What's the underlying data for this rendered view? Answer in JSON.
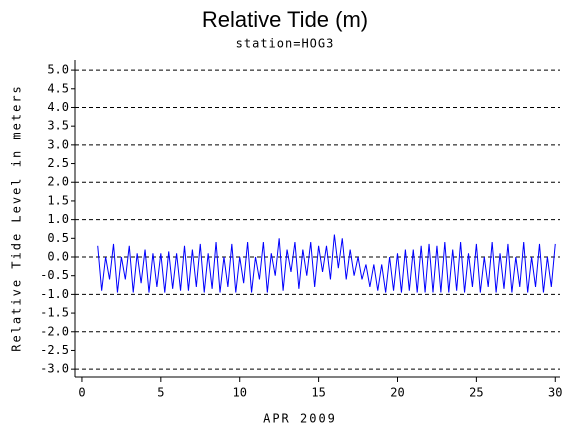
{
  "chart_data": {
    "type": "line",
    "title": "Relative Tide (m)",
    "subtitle": "station=HOG3",
    "xlabel": "APR 2009",
    "ylabel": "Relative Tide Level in meters",
    "xlim": [
      -0.44,
      30.3
    ],
    "ylim": [
      -3.21,
      5.27
    ],
    "xticks": [
      0,
      5,
      10,
      15,
      20,
      25,
      30
    ],
    "yticks": [
      {
        "value": 5,
        "label": "5.0"
      },
      4.5,
      {
        "value": 4,
        "label": "4.0"
      },
      3.5,
      {
        "value": 3,
        "label": "3.0"
      },
      2.5,
      {
        "value": 2,
        "label": "2.0"
      },
      1.5,
      {
        "value": 1,
        "label": "1.0"
      },
      0.5,
      {
        "value": 0,
        "label": "0.0"
      },
      -0.5,
      {
        "value": -1,
        "label": "-1.0"
      },
      -1.5,
      {
        "value": -2,
        "label": "-2.0"
      },
      -2.5,
      {
        "value": -3,
        "label": "-3.0"
      }
    ],
    "grid": true,
    "series": [
      {
        "color": "#0000ff",
        "x": [
          1,
          1.25,
          1.5,
          1.75,
          2,
          2.25,
          2.5,
          2.75,
          3,
          3.25,
          3.5,
          3.75,
          4,
          4.25,
          4.5,
          4.75,
          5,
          5.25,
          5.5,
          5.75,
          6,
          6.25,
          6.5,
          6.75,
          7,
          7.25,
          7.5,
          7.75,
          8,
          8.25,
          8.5,
          8.75,
          9,
          9.25,
          9.5,
          9.75,
          10,
          10.25,
          10.5,
          10.75,
          11,
          11.25,
          11.5,
          11.75,
          12,
          12.25,
          12.5,
          12.75,
          13,
          13.25,
          13.5,
          13.75,
          14,
          14.25,
          14.5,
          14.75,
          15,
          15.25,
          15.5,
          15.75,
          16,
          16.25,
          16.5,
          16.75,
          17,
          17.25,
          17.5,
          17.75,
          18,
          18.25,
          18.5,
          18.75,
          19,
          19.25,
          19.5,
          19.75,
          20,
          20.25,
          20.5,
          20.75,
          21,
          21.25,
          21.5,
          21.75,
          22,
          22.25,
          22.5,
          22.75,
          23,
          23.25,
          23.5,
          23.75,
          24,
          24.25,
          24.5,
          24.75,
          25,
          25.25,
          25.5,
          25.75,
          26,
          26.25,
          26.5,
          26.75,
          27,
          27.25,
          27.5,
          27.75,
          28,
          28.25,
          28.5,
          28.75,
          29,
          29.25,
          29.5,
          29.75,
          30
        ],
        "values": [
          0.3,
          -0.9,
          0.0,
          -0.6,
          0.35,
          -0.95,
          0.0,
          -0.6,
          0.3,
          -0.95,
          0.1,
          -0.7,
          0.2,
          -0.95,
          0.1,
          -0.8,
          0.1,
          -0.95,
          0.15,
          -0.85,
          0.1,
          -0.9,
          0.3,
          -0.9,
          0.2,
          -0.8,
          0.35,
          -0.95,
          0.1,
          -0.85,
          0.4,
          -0.95,
          0.0,
          -0.8,
          0.35,
          -0.95,
          0.0,
          -0.7,
          0.4,
          -0.95,
          0.0,
          -0.6,
          0.4,
          -0.95,
          0.1,
          -0.5,
          0.5,
          -0.9,
          0.2,
          -0.4,
          0.4,
          -0.85,
          0.2,
          -0.5,
          0.4,
          -0.8,
          0.3,
          -0.4,
          0.3,
          -0.6,
          0.6,
          -0.3,
          0.5,
          -0.6,
          0.2,
          -0.5,
          0.0,
          -0.6,
          -0.2,
          -0.8,
          -0.2,
          -0.9,
          -0.2,
          -0.95,
          0.0,
          -0.9,
          0.1,
          -0.95,
          0.2,
          -0.9,
          0.2,
          -0.95,
          0.3,
          -0.95,
          0.35,
          -0.95,
          0.3,
          -0.95,
          0.4,
          -0.95,
          0.2,
          -0.9,
          0.4,
          -0.95,
          0.1,
          -0.8,
          0.35,
          -0.95,
          0.0,
          -0.8,
          0.4,
          -0.95,
          0.1,
          -0.85,
          0.35,
          -0.95,
          0.0,
          -0.8,
          0.4,
          -0.95,
          0.0,
          -0.8,
          0.35,
          -0.95,
          0.0,
          -0.8,
          0.35
        ]
      }
    ]
  }
}
